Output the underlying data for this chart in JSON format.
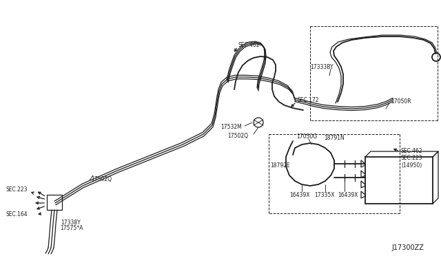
{
  "bg_color": "#ffffff",
  "line_color": "#1a1a1a",
  "labels": {
    "sec462_top": "SEC.462",
    "sec462_right": "SEC.462",
    "sec172": "SEC.172",
    "sec223_left": "SEC.223",
    "sec164": "SEC.164",
    "sec223_right": "SEC.223\n(14950)",
    "l17333BY": "17333BY",
    "l17050R": "17050R",
    "l17532M": "17532M",
    "l17502Q_mid": "17502Q",
    "l17050G": "17050G",
    "l18791N": "18791N",
    "l18792E": "18792E",
    "l17502Q_left": "17502Q",
    "l17338Y": "17338Y",
    "l17575A": "17575*A",
    "l16439X_left": "16439X",
    "l17335X": "17335X",
    "l16439X_right": "16439X",
    "diagram_num": "J17300ZZ"
  },
  "font_size": 5.5,
  "lw": 0.9,
  "lw2": 1.3,
  "lw3": 1.8
}
